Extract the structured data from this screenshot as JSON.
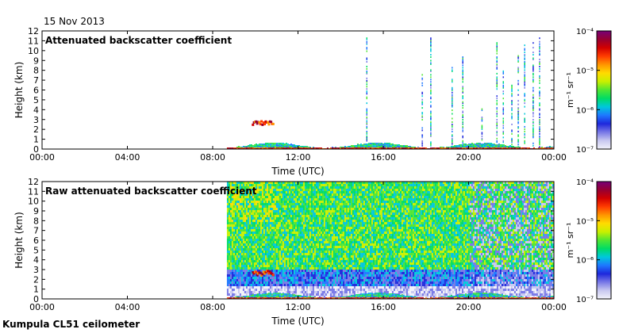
{
  "header": {
    "date": "15 Nov 2013"
  },
  "footer": {
    "instrument": "Kumpula CL51 ceilometer"
  },
  "colorbar": {
    "colors": [
      "#f2f2fa",
      "#c8c8f0",
      "#7878e6",
      "#1e28dc",
      "#1e78ff",
      "#00c8dc",
      "#00dc64",
      "#50e632",
      "#c8f000",
      "#ffdc00",
      "#ff9600",
      "#ff3c00",
      "#d20000",
      "#960032",
      "#780078"
    ]
  },
  "chart_data": [
    {
      "type": "heatmap",
      "title": "Attenuated backscatter coefficient",
      "xlabel": "Time (UTC)",
      "ylabel": "Height (km)",
      "x_ticks": [
        "00:00",
        "04:00",
        "08:00",
        "12:00",
        "16:00",
        "20:00",
        "00:00"
      ],
      "y_ticks": [
        "0",
        "1",
        "2",
        "3",
        "4",
        "5",
        "6",
        "7",
        "8",
        "9",
        "10",
        "11",
        "12"
      ],
      "xlim": [
        "00:00",
        "24:00"
      ],
      "ylim": [
        0,
        12
      ],
      "colorbar": {
        "label": "m⁻¹ sr⁻¹",
        "scale": "log",
        "range": [
          1e-07,
          0.0001
        ],
        "tick_labels": [
          "10⁻⁷",
          "10⁻⁶",
          "10⁻⁵",
          "10⁻⁴"
        ]
      },
      "data_start": "08:40",
      "features": [
        {
          "desc": "boundary layer",
          "from": "08:40",
          "to": "24:00",
          "height_km": [
            0,
            0.6
          ]
        },
        {
          "desc": "cloud layer",
          "from": "09:50",
          "to": "10:50",
          "height_km": [
            2.5,
            3.0
          ]
        },
        {
          "desc": "cloud/precipitation columns",
          "from": "15:10",
          "to": "23:40",
          "height_km": [
            0,
            12
          ]
        }
      ]
    },
    {
      "type": "heatmap",
      "title": "Raw attenuated backscatter coefficient",
      "xlabel": "Time (UTC)",
      "ylabel": "Height (km)",
      "x_ticks": [
        "00:00",
        "04:00",
        "08:00",
        "12:00",
        "16:00",
        "20:00",
        "00:00"
      ],
      "y_ticks": [
        "0",
        "1",
        "2",
        "3",
        "4",
        "5",
        "6",
        "7",
        "8",
        "9",
        "10",
        "11",
        "12"
      ],
      "xlim": [
        "00:00",
        "24:00"
      ],
      "ylim": [
        0,
        12
      ],
      "colorbar": {
        "label": "m⁻¹ sr⁻¹",
        "scale": "log",
        "range": [
          1e-07,
          0.0001
        ],
        "tick_labels": [
          "10⁻⁷",
          "10⁻⁶",
          "10⁻⁵",
          "10⁻⁴"
        ]
      },
      "data_start": "08:40",
      "features": [
        {
          "desc": "noisy signal, green/yellow aloft",
          "from": "08:40",
          "to": "24:00",
          "height_km": [
            0,
            12
          ]
        },
        {
          "desc": "boundary layer",
          "from": "08:40",
          "to": "24:00",
          "height_km": [
            0,
            0.6
          ]
        },
        {
          "desc": "cloud layer",
          "from": "09:50",
          "to": "10:50",
          "height_km": [
            2.5,
            3.0
          ]
        }
      ]
    }
  ]
}
